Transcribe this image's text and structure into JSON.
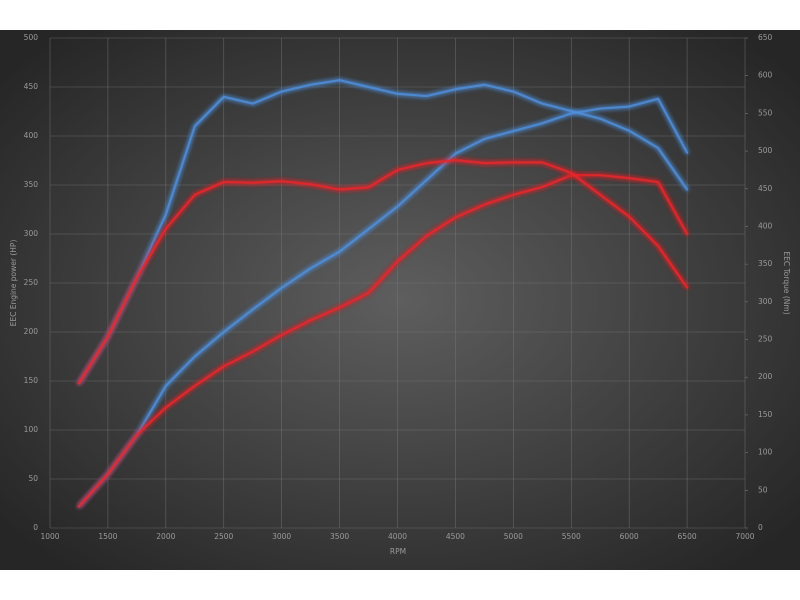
{
  "chart_data": {
    "type": "line",
    "xlabel": "RPM",
    "ylabel": "EEC Engine power (HP)",
    "y2label": "EEC Torque (Nm)",
    "x": [
      1250,
      1500,
      1750,
      2000,
      2250,
      2500,
      2750,
      3000,
      3250,
      3500,
      3750,
      4000,
      4250,
      4500,
      4750,
      5000,
      5250,
      5500,
      5750,
      6000,
      6250,
      6500
    ],
    "series": [
      {
        "color": "#4f8fdc",
        "axis": "y",
        "values": [
          22,
          55,
          95,
          145,
          175,
          200,
          223,
          245,
          265,
          282,
          305,
          328,
          355,
          382,
          397,
          405,
          413,
          423,
          428,
          430,
          438,
          383
        ]
      },
      {
        "color": "#4f8fdc",
        "axis": "y2",
        "values": [
          192,
          254,
          332,
          416,
          533,
          572,
          563,
          579,
          588,
          594,
          585,
          576,
          573,
          582,
          588,
          579,
          563,
          553,
          543,
          527,
          504,
          449
        ]
      },
      {
        "color": "#e8262a",
        "axis": "y",
        "values": [
          22,
          55,
          95,
          123,
          145,
          165,
          180,
          197,
          212,
          225,
          240,
          272,
          298,
          317,
          330,
          340,
          348,
          360,
          360,
          357,
          353,
          300
        ]
      },
      {
        "color": "#e8262a",
        "axis": "y2",
        "values": [
          192,
          254,
          332,
          397,
          442,
          459,
          458,
          460,
          456,
          449,
          452,
          475,
          484,
          488,
          484,
          485,
          485,
          471,
          442,
          413,
          374,
          319
        ]
      }
    ],
    "xlim": [
      1000,
      7000
    ],
    "xticks": [
      1000,
      1500,
      2000,
      2500,
      3000,
      3500,
      4000,
      4500,
      5000,
      5500,
      6000,
      6500,
      7000
    ],
    "ylim": [
      0,
      500
    ],
    "yticks": [
      0,
      50,
      100,
      150,
      200,
      250,
      300,
      350,
      400,
      450,
      500
    ],
    "y2lim": [
      0,
      650
    ],
    "y2ticks": [
      0,
      50,
      100,
      150,
      200,
      250,
      300,
      350,
      400,
      450,
      500,
      550,
      600,
      650
    ],
    "grid": true
  }
}
